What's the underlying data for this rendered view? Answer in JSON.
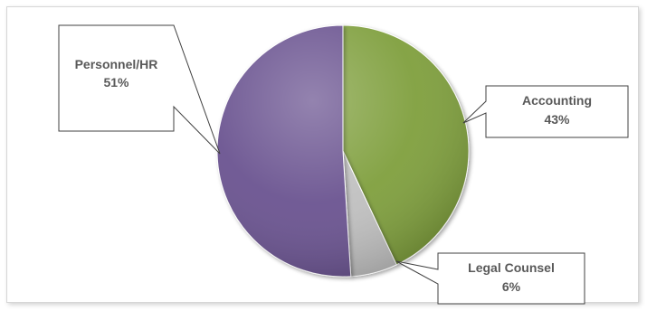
{
  "chart_data": {
    "type": "pie",
    "title": "",
    "slices": [
      {
        "label": "Accounting",
        "value": 43,
        "display": "43%",
        "color": "#7f9f3c"
      },
      {
        "label": "Legal Counsel",
        "value": 6,
        "display": "6%",
        "color": "#c0c0c0"
      },
      {
        "label": "Personnel/HR",
        "value": 51,
        "display": "51%",
        "color": "#6a5290"
      }
    ],
    "legend": "none",
    "data_labels": "callouts"
  }
}
